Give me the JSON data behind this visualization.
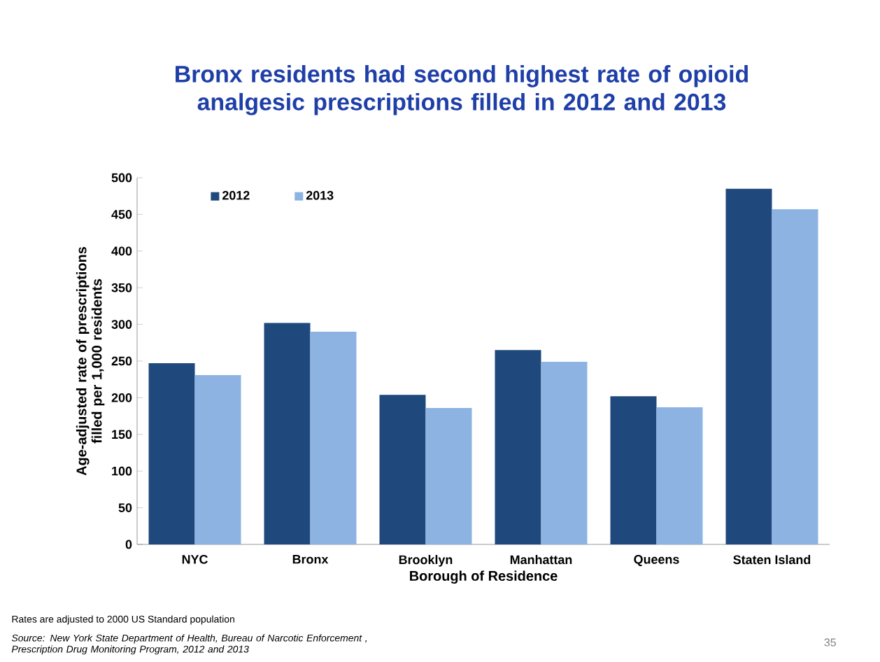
{
  "chart_data": {
    "type": "bar",
    "title": "Bronx residents had second highest rate of opioid analgesic prescriptions filled in 2012 and 2013",
    "xlabel": "Borough of Residence",
    "ylabel": "Age-adjusted rate of prescriptions filled per 1,000 residents",
    "categories": [
      "NYC",
      "Bronx",
      "Brooklyn",
      "Manhattan",
      "Queens",
      "Staten Island"
    ],
    "series": [
      {
        "name": "2012",
        "color": "#1f497d",
        "values": [
          247,
          302,
          204,
          265,
          202,
          485
        ]
      },
      {
        "name": "2013",
        "color": "#8db3e2",
        "values": [
          231,
          290,
          186,
          249,
          187,
          457
        ]
      }
    ],
    "ylim": [
      0,
      500
    ],
    "yticks": [
      0,
      50,
      100,
      150,
      200,
      250,
      300,
      350,
      400,
      450,
      500
    ],
    "legend": "top left",
    "grid": false,
    "annotations": [
      "Rates are adjusted to 2000 US Standard population",
      "Source: New York State  Department of Health, Bureau of Narcotic Enforcement , Prescription Drug Monitoring Program, 2012 and 2013",
      "35"
    ]
  }
}
